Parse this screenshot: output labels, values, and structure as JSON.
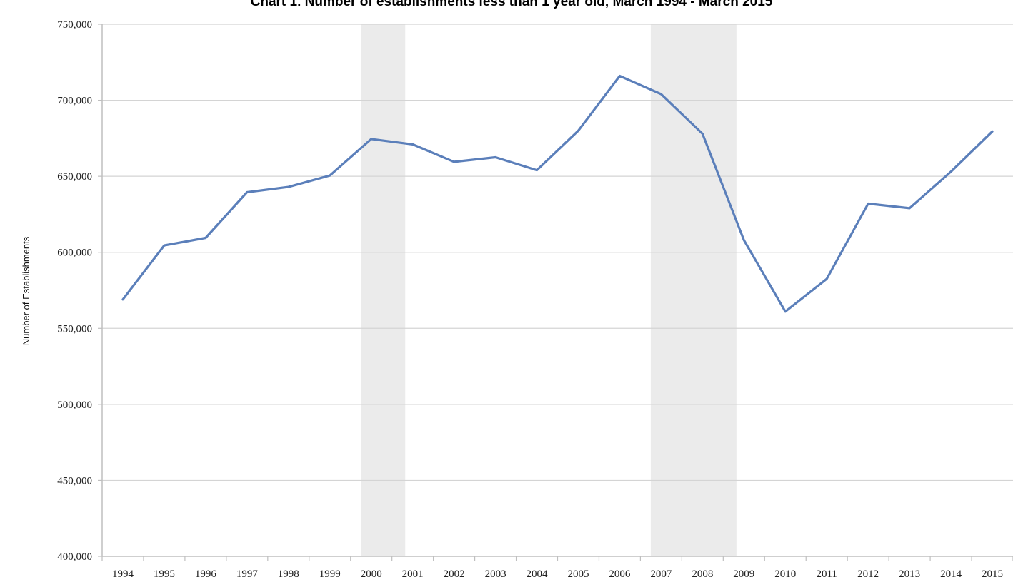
{
  "chart_data": {
    "type": "line",
    "title": "Chart 1. Number of establishments less than 1 year old, March 1994 - March 2015",
    "xlabel": "",
    "ylabel": "Number of Establishments",
    "x": [
      "1994",
      "1995",
      "1996",
      "1997",
      "1998",
      "1999",
      "2000",
      "2001",
      "2002",
      "2003",
      "2004",
      "2005",
      "2006",
      "2007",
      "2008",
      "2009",
      "2010",
      "2011",
      "2012",
      "2013",
      "2014",
      "2015"
    ],
    "series": [
      {
        "name": "",
        "values": [
          569000,
          604500,
          609500,
          639500,
          643000,
          650500,
          674500,
          671000,
          659500,
          662500,
          654000,
          680000,
          716000,
          704000,
          678000,
          608000,
          561000,
          582500,
          632000,
          629000,
          653000,
          679500
        ]
      }
    ],
    "ylim": [
      400000,
      750000
    ],
    "y_ticks": [
      "400,000",
      "450,000",
      "500,000",
      "550,000",
      "600,000",
      "650,000",
      "700,000",
      "750,000"
    ],
    "y_tick_values": [
      400000,
      450000,
      500000,
      550000,
      600000,
      650000,
      700000,
      750000
    ],
    "grid": true,
    "legend": "none",
    "shaded_periods": [
      {
        "from": "2000",
        "to": "2001"
      },
      {
        "from": "2007",
        "to": "2009"
      }
    ],
    "colors": {
      "line": "#5b7fba",
      "shading": "#ebebeb",
      "grid": "#d4d4d4",
      "axis": "#bfbfbf"
    }
  }
}
